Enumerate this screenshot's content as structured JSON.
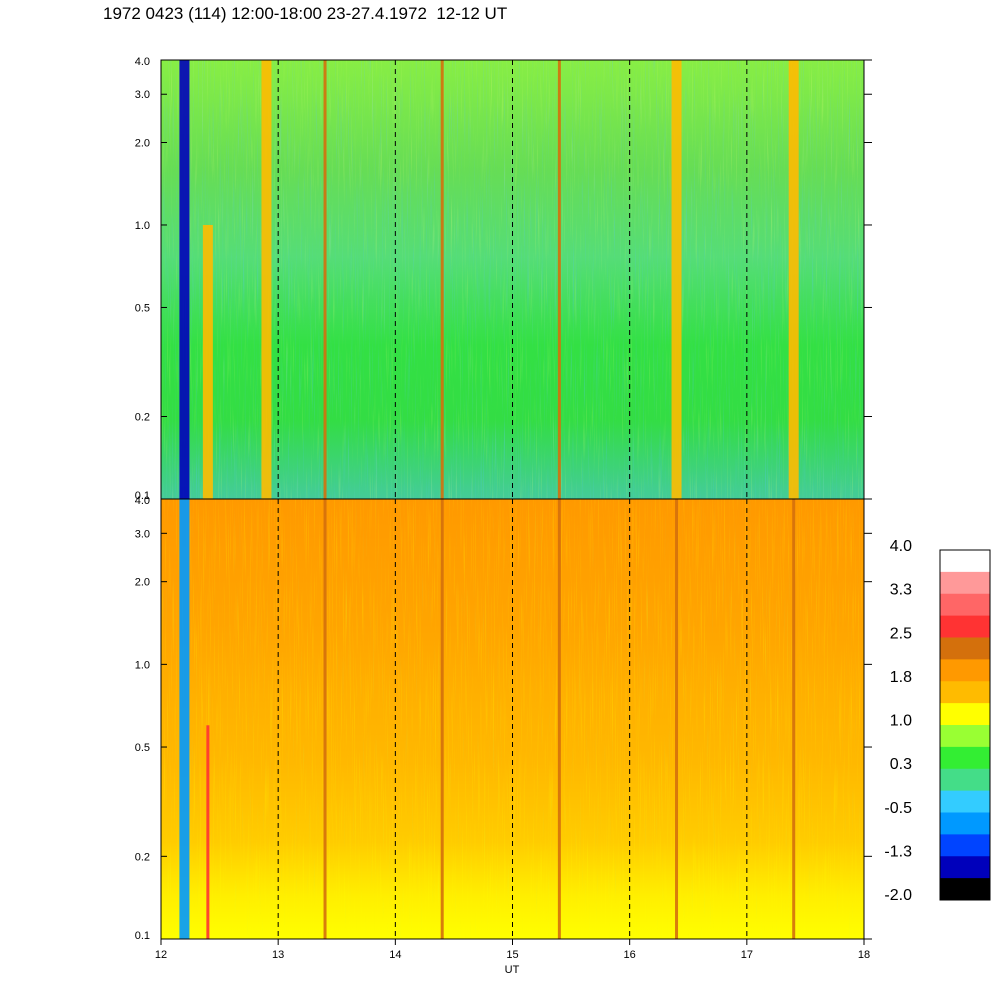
{
  "title": "1972 0423 (114) 12:00-18:00 23-27.4.1972  12-12 UT",
  "chart_data": [
    {
      "type": "heatmap",
      "panel": "upper",
      "x_range": [
        12,
        18
      ],
      "y_scale": "log",
      "y_range": [
        0.1,
        4.0
      ],
      "y_ticks": [
        "0.1",
        "0.2",
        "0.5",
        "1.0",
        "2.0",
        "3.0",
        "4.0"
      ],
      "vertical_markers": [
        13,
        14,
        15,
        16,
        17
      ],
      "dominant_level": 0.3,
      "features": [
        {
          "x": 12.2,
          "y_to": 4.0,
          "level": -1.3
        },
        {
          "x": 12.4,
          "y_to": 1.0,
          "level": 1.8
        },
        {
          "x": 12.9,
          "y_to": 4.0,
          "level": 1.8
        },
        {
          "x": 13.4,
          "y_to": 4.0,
          "level": 2.5
        },
        {
          "x": 14.4,
          "y_to": 4.0,
          "level": 2.5
        },
        {
          "x": 15.4,
          "y_to": 4.0,
          "level": 2.5
        },
        {
          "x": 16.4,
          "y_to": 4.0,
          "level": 1.8
        },
        {
          "x": 17.4,
          "y_to": 4.0,
          "level": 1.8
        }
      ]
    },
    {
      "type": "heatmap",
      "panel": "lower",
      "x_range": [
        12,
        18
      ],
      "x_ticks": [
        "12",
        "13",
        "14",
        "15",
        "16",
        "17",
        "18"
      ],
      "xlabel": "UT",
      "y_scale": "log",
      "y_range": [
        0.1,
        4.0
      ],
      "y_ticks": [
        "0.1",
        "0.2",
        "0.5",
        "1.0",
        "2.0",
        "3.0",
        "4.0"
      ],
      "vertical_markers": [
        13,
        14,
        15,
        16,
        17
      ],
      "dominant_level": 1.8,
      "features": [
        {
          "x": 12.2,
          "y_to": 4.0,
          "level": -0.5
        },
        {
          "x": 12.4,
          "y_to": 0.6,
          "level": 3.0
        },
        {
          "x": 13.4,
          "y_to": 4.0,
          "level": 2.5
        },
        {
          "x": 14.4,
          "y_to": 4.0,
          "level": 2.5
        },
        {
          "x": 15.4,
          "y_to": 4.0,
          "level": 2.5
        },
        {
          "x": 16.4,
          "y_to": 4.0,
          "level": 2.5
        },
        {
          "x": 17.4,
          "y_to": 4.0,
          "level": 2.5
        }
      ]
    }
  ],
  "colorbar": {
    "labels": [
      "4.0",
      "3.3",
      "2.5",
      "1.8",
      "1.0",
      "0.3",
      "-0.5",
      "-1.3",
      "-2.0"
    ],
    "colors": [
      "#ffffff",
      "#ff9999",
      "#ff6666",
      "#ff3333",
      "#d4700c",
      "#ff9900",
      "#ffbb00",
      "#ffff00",
      "#99ff33",
      "#33ee33",
      "#44dd88",
      "#33ccff",
      "#0099ff",
      "#0044ff",
      "#0000bb",
      "#000000"
    ]
  }
}
